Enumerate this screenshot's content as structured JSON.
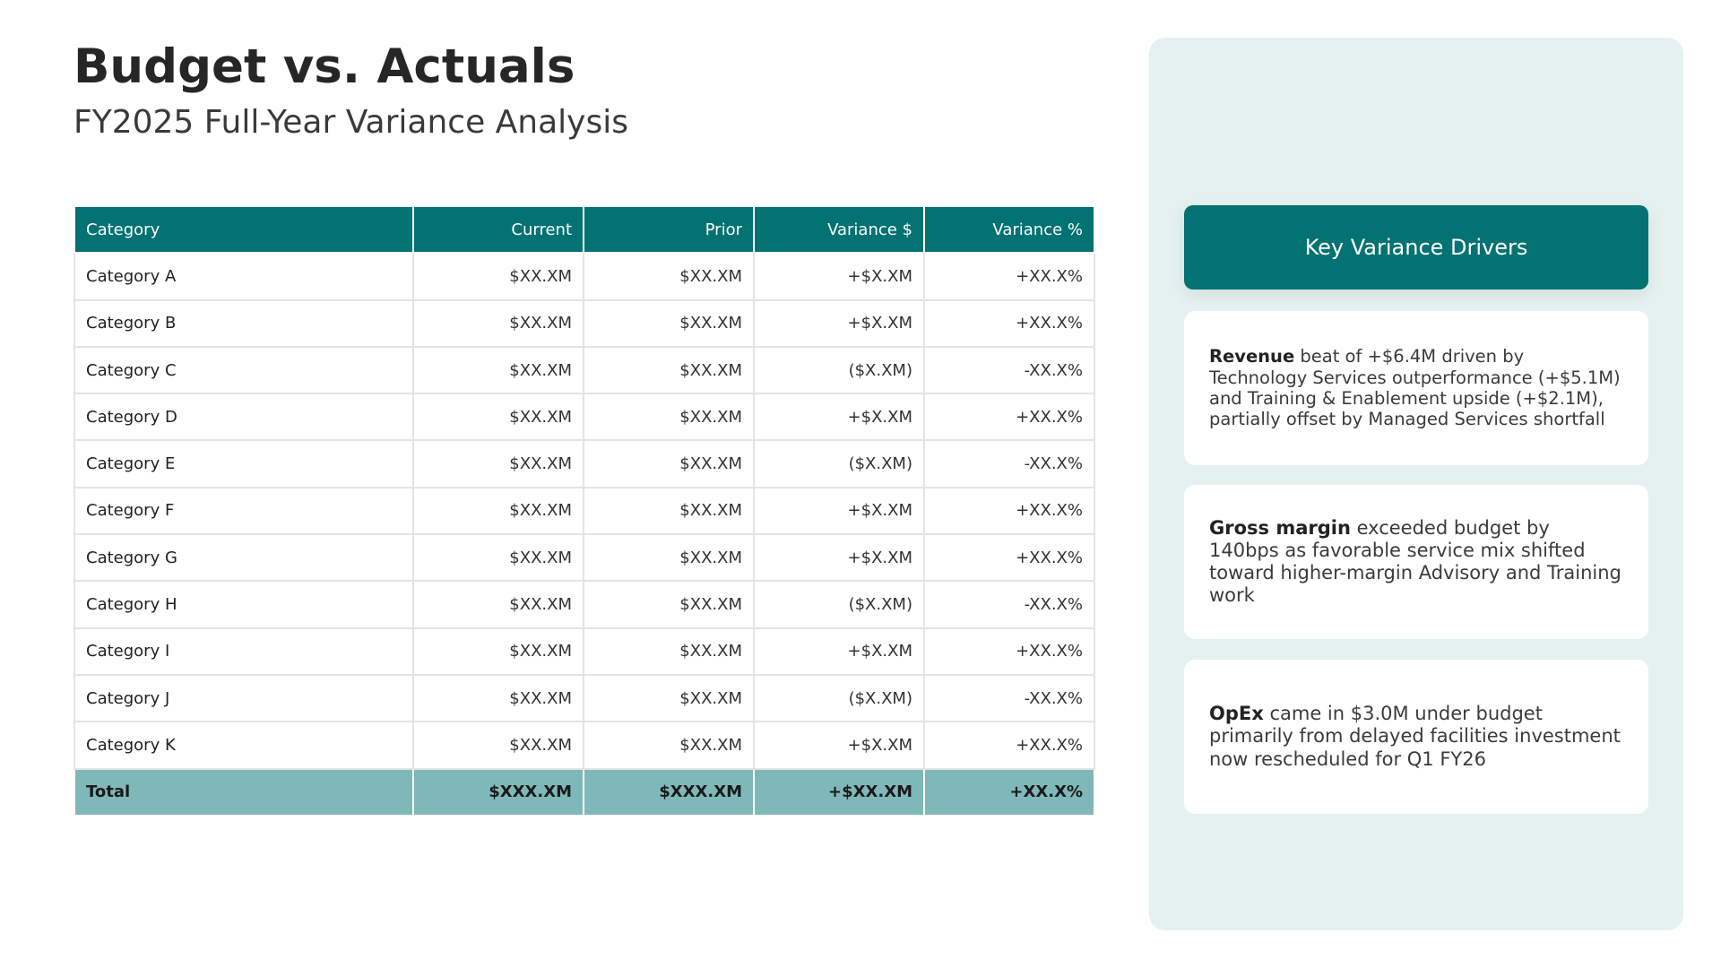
{
  "header": {
    "title": "Budget vs. Actuals",
    "subtitle": "FY2025 Full-Year Variance Analysis"
  },
  "table": {
    "columns": [
      "Category",
      "Current",
      "Prior",
      "Variance $",
      "Variance %"
    ],
    "rows": [
      [
        "Category A",
        "$XX.XM",
        "$XX.XM",
        "+$X.XM",
        "+XX.X%"
      ],
      [
        "Category B",
        "$XX.XM",
        "$XX.XM",
        "+$X.XM",
        "+XX.X%"
      ],
      [
        "Category C",
        "$XX.XM",
        "$XX.XM",
        "($X.XM)",
        "-XX.X%"
      ],
      [
        "Category D",
        "$XX.XM",
        "$XX.XM",
        "+$X.XM",
        "+XX.X%"
      ],
      [
        "Category E",
        "$XX.XM",
        "$XX.XM",
        "($X.XM)",
        "-XX.X%"
      ],
      [
        "Category F",
        "$XX.XM",
        "$XX.XM",
        "+$X.XM",
        "+XX.X%"
      ],
      [
        "Category G",
        "$XX.XM",
        "$XX.XM",
        "+$X.XM",
        "+XX.X%"
      ],
      [
        "Category H",
        "$XX.XM",
        "$XX.XM",
        "($X.XM)",
        "-XX.X%"
      ],
      [
        "Category I",
        "$XX.XM",
        "$XX.XM",
        "+$X.XM",
        "+XX.X%"
      ],
      [
        "Category J",
        "$XX.XM",
        "$XX.XM",
        "($X.XM)",
        "-XX.X%"
      ],
      [
        "Category K",
        "$XX.XM",
        "$XX.XM",
        "+$X.XM",
        "+XX.X%"
      ]
    ],
    "total": [
      "Total",
      "$XXX.XM",
      "$XXX.XM",
      "+$XX.XM",
      "+XX.X%"
    ]
  },
  "sidebar": {
    "title": "Key Variance Drivers",
    "drivers": [
      {
        "lead": "Revenue",
        "text": "beat of +$6.4M driven by Technology Services outperformance (+$5.1M) and Training & Enablement upside (+$2.1M), partially offset by Managed Services shortfall"
      },
      {
        "lead": "Gross margin",
        "text": "exceeded budget by 140bps as favorable service mix shifted toward higher-margin Advisory and Training work"
      },
      {
        "lead": "OpEx",
        "text": "came in $3.0M under budget primarily from delayed facilities investment now rescheduled for Q1 FY26"
      }
    ]
  }
}
